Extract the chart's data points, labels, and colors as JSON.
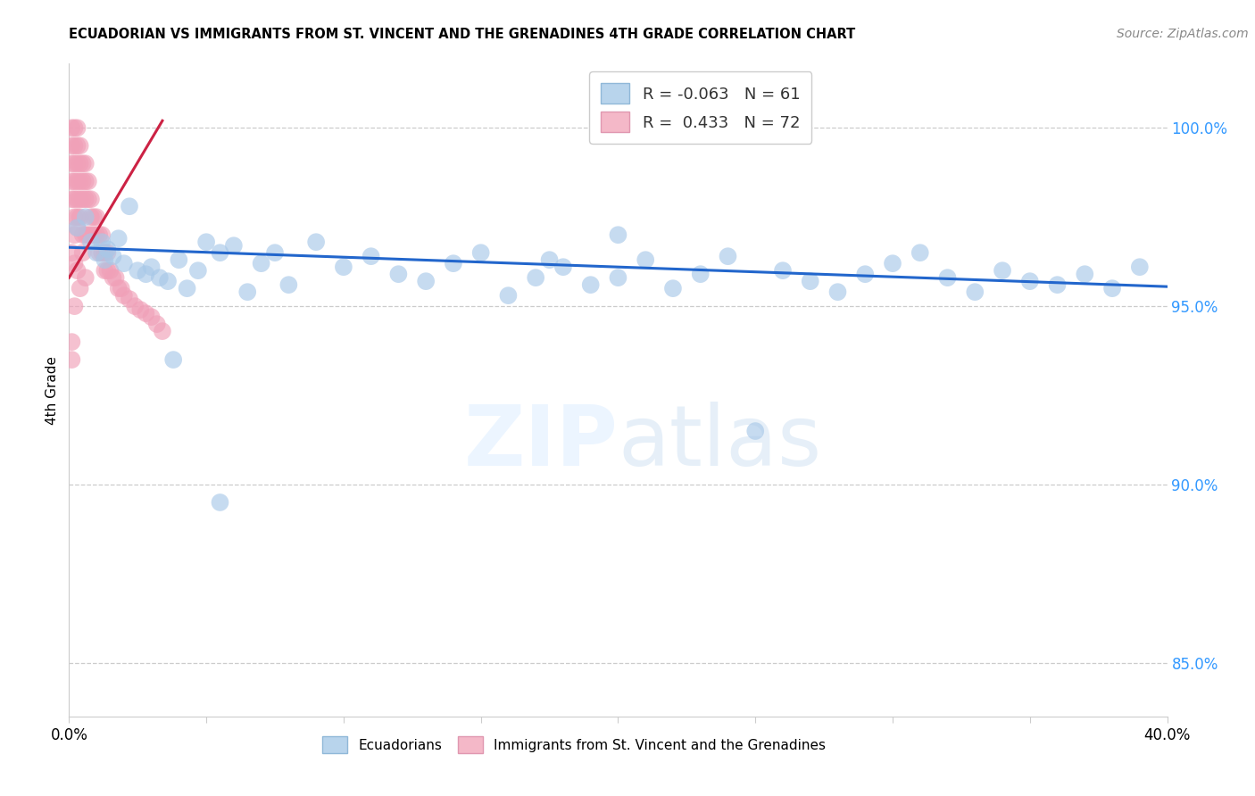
{
  "title": "ECUADORIAN VS IMMIGRANTS FROM ST. VINCENT AND THE GRENADINES 4TH GRADE CORRELATION CHART",
  "source": "Source: ZipAtlas.com",
  "ylabel": "4th Grade",
  "yticks": [
    85.0,
    90.0,
    95.0,
    100.0
  ],
  "xlim": [
    0.0,
    0.4
  ],
  "ylim": [
    83.5,
    101.8
  ],
  "legend_blue_R": "-0.063",
  "legend_blue_N": "61",
  "legend_pink_R": "0.433",
  "legend_pink_N": "72",
  "blue_color": "#a8c8e8",
  "pink_color": "#f0a0b8",
  "blue_line_color": "#2266cc",
  "pink_line_color": "#cc2244",
  "blue_x": [
    0.003,
    0.006,
    0.008,
    0.01,
    0.012,
    0.013,
    0.014,
    0.016,
    0.018,
    0.02,
    0.022,
    0.025,
    0.028,
    0.03,
    0.033,
    0.036,
    0.04,
    0.043,
    0.047,
    0.05,
    0.055,
    0.06,
    0.065,
    0.07,
    0.075,
    0.08,
    0.09,
    0.1,
    0.11,
    0.12,
    0.13,
    0.14,
    0.15,
    0.16,
    0.17,
    0.18,
    0.19,
    0.2,
    0.21,
    0.22,
    0.23,
    0.24,
    0.25,
    0.26,
    0.27,
    0.28,
    0.29,
    0.3,
    0.31,
    0.32,
    0.33,
    0.34,
    0.35,
    0.36,
    0.37,
    0.38,
    0.39,
    0.038,
    0.055,
    0.175,
    0.2
  ],
  "blue_y": [
    97.2,
    97.5,
    96.8,
    96.5,
    96.8,
    96.3,
    96.6,
    96.4,
    96.9,
    96.2,
    97.8,
    96.0,
    95.9,
    96.1,
    95.8,
    95.7,
    96.3,
    95.5,
    96.0,
    96.8,
    96.5,
    96.7,
    95.4,
    96.2,
    96.5,
    95.6,
    96.8,
    96.1,
    96.4,
    95.9,
    95.7,
    96.2,
    96.5,
    95.3,
    95.8,
    96.1,
    95.6,
    95.8,
    96.3,
    95.5,
    95.9,
    96.4,
    91.5,
    96.0,
    95.7,
    95.4,
    95.9,
    96.2,
    96.5,
    95.8,
    95.4,
    96.0,
    95.7,
    95.6,
    95.9,
    95.5,
    96.1,
    93.5,
    89.5,
    96.3,
    97.0
  ],
  "pink_x": [
    0.001,
    0.001,
    0.001,
    0.001,
    0.001,
    0.002,
    0.002,
    0.002,
    0.002,
    0.002,
    0.002,
    0.003,
    0.003,
    0.003,
    0.003,
    0.003,
    0.003,
    0.004,
    0.004,
    0.004,
    0.004,
    0.004,
    0.005,
    0.005,
    0.005,
    0.005,
    0.006,
    0.006,
    0.006,
    0.006,
    0.007,
    0.007,
    0.007,
    0.008,
    0.008,
    0.008,
    0.009,
    0.009,
    0.01,
    0.01,
    0.011,
    0.011,
    0.012,
    0.012,
    0.013,
    0.013,
    0.014,
    0.014,
    0.015,
    0.016,
    0.017,
    0.018,
    0.019,
    0.02,
    0.022,
    0.024,
    0.026,
    0.028,
    0.03,
    0.032,
    0.034,
    0.001,
    0.002,
    0.002,
    0.003,
    0.004,
    0.005,
    0.006,
    0.001,
    0.001,
    0.002,
    0.003
  ],
  "pink_y": [
    100.0,
    99.5,
    99.0,
    98.5,
    98.0,
    100.0,
    99.5,
    99.0,
    98.5,
    98.0,
    97.5,
    100.0,
    99.5,
    99.0,
    98.5,
    98.0,
    97.5,
    99.5,
    99.0,
    98.5,
    98.0,
    97.5,
    99.0,
    98.5,
    98.0,
    97.0,
    99.0,
    98.5,
    98.0,
    97.0,
    98.5,
    98.0,
    97.0,
    98.0,
    97.5,
    97.0,
    97.5,
    97.0,
    97.5,
    97.0,
    97.0,
    96.5,
    97.0,
    96.5,
    96.5,
    96.0,
    96.5,
    96.0,
    96.0,
    95.8,
    95.8,
    95.5,
    95.5,
    95.3,
    95.2,
    95.0,
    94.9,
    94.8,
    94.7,
    94.5,
    94.3,
    96.5,
    95.0,
    97.0,
    96.0,
    95.5,
    96.5,
    95.8,
    94.0,
    93.5,
    96.2,
    97.2
  ],
  "blue_line_x": [
    0.0,
    0.4
  ],
  "blue_line_y": [
    96.65,
    95.55
  ],
  "pink_line_x": [
    0.0,
    0.034
  ],
  "pink_line_y": [
    95.8,
    100.2
  ]
}
